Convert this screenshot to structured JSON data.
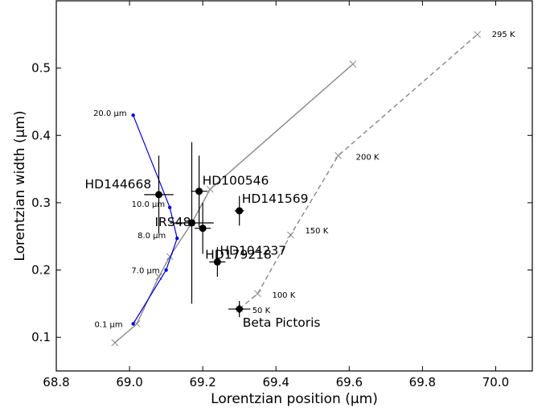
{
  "chart_data": {
    "type": "scatter",
    "xlabel": "Lorentzian position (μm)",
    "ylabel": "Lorentzian width (μm)",
    "xlim": [
      68.8,
      70.1
    ],
    "ylim": [
      0.05,
      0.6
    ],
    "xticks": [
      68.8,
      69.0,
      69.2,
      69.4,
      69.6,
      69.8,
      70.0
    ],
    "xtick_labels": [
      "68.8",
      "69.0",
      "69.2",
      "69.4",
      "69.6",
      "69.8",
      "70.0"
    ],
    "yticks": [
      0.1,
      0.2,
      0.3,
      0.4,
      0.5
    ],
    "ytick_labels": [
      "0.1",
      "0.2",
      "0.3",
      "0.4",
      "0.5"
    ],
    "grid": false,
    "series": [
      {
        "style": "solid-gray-x",
        "color": "#888888",
        "points": [
          {
            "x": 68.96,
            "y": 0.092
          },
          {
            "x": 69.02,
            "y": 0.12
          },
          {
            "x": 69.08,
            "y": 0.19
          },
          {
            "x": 69.11,
            "y": 0.22
          },
          {
            "x": 69.17,
            "y": 0.27
          },
          {
            "x": 69.22,
            "y": 0.32
          },
          {
            "x": 69.61,
            "y": 0.506
          }
        ]
      },
      {
        "style": "dashed-gray-x",
        "color": "#888888",
        "points": [
          {
            "x": 69.3,
            "y": 0.142,
            "label": "50 K"
          },
          {
            "x": 69.35,
            "y": 0.165,
            "label": "100 K"
          },
          {
            "x": 69.44,
            "y": 0.252,
            "label": "150 K"
          },
          {
            "x": 69.57,
            "y": 0.37,
            "label": "200 K"
          },
          {
            "x": 69.95,
            "y": 0.55,
            "label": "295 K"
          }
        ]
      },
      {
        "style": "solid-blue-dot",
        "color": "#0000dd",
        "points": [
          {
            "x": 69.01,
            "y": 0.12,
            "label": "0.1 μm"
          },
          {
            "x": 69.1,
            "y": 0.2,
            "label": "7.0 μm"
          },
          {
            "x": 69.13,
            "y": 0.247,
            "label": "8.0 μm"
          },
          {
            "x": 69.11,
            "y": 0.293,
            "label": "10.0 μm"
          },
          {
            "x": 69.01,
            "y": 0.43,
            "label": "20.0 μm"
          }
        ]
      }
    ],
    "stars": [
      {
        "name": "HD144668",
        "x": 69.08,
        "y": 0.312,
        "xerr": 0.04,
        "yerr": 0.058,
        "marker": "circle"
      },
      {
        "name": "HD100546",
        "x": 69.19,
        "y": 0.317,
        "xerr": 0.022,
        "yerr": 0.053,
        "marker": "circle"
      },
      {
        "name": "IRS48",
        "x": 69.17,
        "y": 0.27,
        "xerr": 0.06,
        "yerr": 0.12,
        "marker": "circle"
      },
      {
        "name": "HD179218",
        "x": 69.2,
        "y": 0.262,
        "xerr": 0.022,
        "yerr": 0.038,
        "marker": "circle"
      },
      {
        "name": "HD141569",
        "x": 69.3,
        "y": 0.288,
        "xerr": 0.013,
        "yerr": 0.022,
        "marker": "circle"
      },
      {
        "name": "HD104237",
        "x": 69.24,
        "y": 0.212,
        "xerr": 0.022,
        "yerr": 0.022,
        "marker": "circle"
      },
      {
        "name": "Beta Pictoris",
        "x": 69.3,
        "y": 0.142,
        "xerr": 0.03,
        "yerr": 0.012,
        "marker": "diamond"
      }
    ]
  }
}
